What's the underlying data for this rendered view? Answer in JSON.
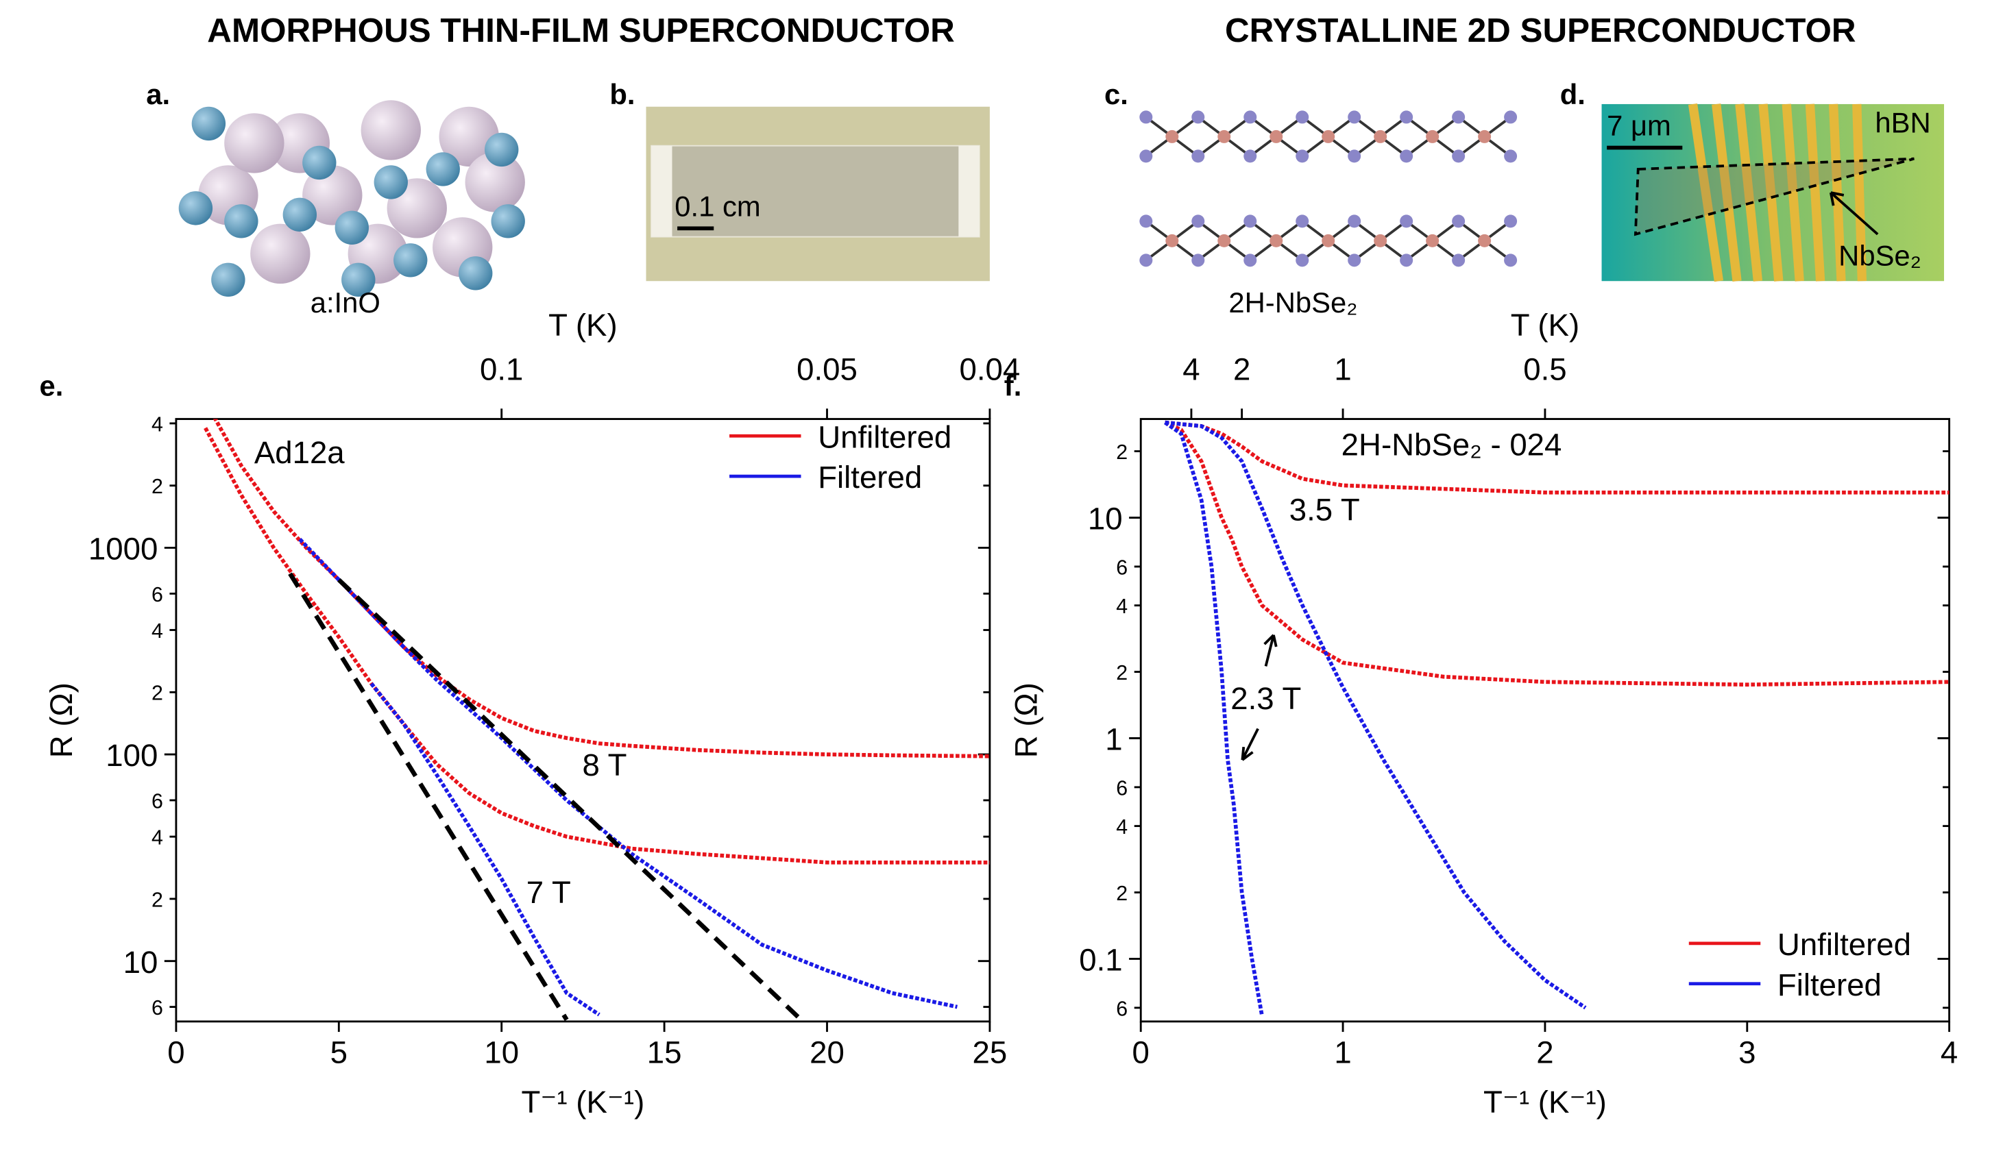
{
  "headings": [
    "AMORPHOUS THIN-FILM SUPERCONDUCTOR",
    "CRYSTALLINE 2D SUPERCONDUCTOR"
  ],
  "panels": {
    "a": {
      "letter": "a.",
      "caption": "a:InO"
    },
    "b": {
      "letter": "b.",
      "scale": "0.1 cm"
    },
    "c": {
      "letter": "c.",
      "caption": "2H-NbSe₂"
    },
    "d": {
      "letter": "d.",
      "scale": "7 μm",
      "labels": [
        "hBN",
        "NbSe₂"
      ]
    }
  },
  "chart_data": [
    {
      "type": "line",
      "panel_label": "e.",
      "xlabel": "T⁻¹ (K⁻¹)",
      "ylabel": "R (Ω)",
      "x2label": "T (K)",
      "yscale": "log",
      "legend": "upper right",
      "xlim": [
        0,
        25
      ],
      "ylim": [
        5.1,
        4200
      ],
      "xticks": [
        0,
        5,
        10,
        15,
        20,
        25
      ],
      "yticks": [
        {
          "value": 6,
          "label": "6"
        },
        10,
        {
          "value": 20,
          "label": "2"
        },
        {
          "value": 40,
          "label": "4"
        },
        {
          "value": 60,
          "label": "6"
        },
        100,
        {
          "value": 200,
          "label": "2"
        },
        {
          "value": 400,
          "label": "4"
        },
        {
          "value": 600,
          "label": "6"
        },
        1000,
        {
          "value": 2000,
          "label": "2"
        },
        {
          "value": 4000,
          "label": "4"
        }
      ],
      "x2ticks": [
        0.1,
        0.05,
        0.04
      ],
      "annotations": [
        "Ad12a",
        "8 T",
        "7 T"
      ],
      "series": [
        {
          "name": "Unfiltered",
          "color": "#e8141b",
          "curves": [
            {
              "x": [
                1,
                2,
                3,
                4,
                5,
                6,
                7,
                8,
                9,
                10,
                11,
                12,
                13,
                14,
                16,
                18,
                20,
                22,
                25
              ],
              "values": [
                4800,
                2500,
                1500,
                1000,
                700,
                480,
                330,
                240,
                185,
                150,
                130,
                120,
                113,
                110,
                105,
                102,
                100,
                99,
                98
              ]
            },
            {
              "x": [
                0.9,
                2,
                3,
                4,
                5,
                6,
                7,
                8,
                9,
                10,
                11,
                12,
                14,
                16,
                20,
                25
              ],
              "values": [
                3800,
                1800,
                1000,
                600,
                370,
                220,
                140,
                90,
                65,
                52,
                45,
                40,
                35,
                33,
                30,
                30
              ]
            }
          ]
        },
        {
          "name": "Filtered",
          "color": "#1a1ae6",
          "curves": [
            {
              "x": [
                3.8,
                5,
                6,
                7,
                8,
                10,
                12,
                14,
                16,
                18,
                20,
                22,
                24
              ],
              "values": [
                1100,
                700,
                480,
                330,
                230,
                120,
                60,
                33,
                20,
                12,
                9,
                7,
                6
              ]
            },
            {
              "x": [
                6,
                7,
                8,
                9,
                10,
                11,
                12,
                13
              ],
              "values": [
                220,
                140,
                80,
                45,
                25,
                13,
                7,
                5.5
              ]
            }
          ]
        }
      ],
      "fits": [
        {
          "x": [
            5,
            19.2
          ],
          "values": [
            700,
            5.2
          ]
        },
        {
          "x": [
            3.5,
            12
          ],
          "values": [
            750,
            5.2
          ]
        }
      ]
    },
    {
      "type": "line",
      "panel_label": "f.",
      "xlabel": "T⁻¹ (K⁻¹)",
      "ylabel": "R (Ω)",
      "x2label": "T (K)",
      "yscale": "log",
      "legend": "lower right",
      "xlim": [
        0,
        4
      ],
      "ylim": [
        0.052,
        28
      ],
      "xticks": [
        0,
        1,
        2,
        3,
        4
      ],
      "yticks": [
        {
          "value": 0.06,
          "label": "6"
        },
        0.1,
        {
          "value": 0.2,
          "label": "2"
        },
        {
          "value": 0.4,
          "label": "4"
        },
        {
          "value": 0.6,
          "label": "6"
        },
        1,
        {
          "value": 2,
          "label": "2"
        },
        {
          "value": 4,
          "label": "4"
        },
        {
          "value": 6,
          "label": "6"
        },
        10,
        {
          "value": 20,
          "label": "2"
        }
      ],
      "x2ticks": [
        4,
        2,
        1,
        0.5
      ],
      "annotations": [
        "2H-NbSe₂ - 024",
        "3.5 T",
        "2.3 T"
      ],
      "series": [
        {
          "name": "Unfiltered",
          "color": "#e8141b",
          "curves": [
            {
              "x": [
                0.12,
                0.3,
                0.4,
                0.5,
                0.6,
                0.8,
                1,
                1.5,
                2,
                3,
                4
              ],
              "values": [
                27,
                26,
                24,
                21,
                18,
                15,
                14,
                13.5,
                13,
                13,
                13
              ]
            },
            {
              "x": [
                0.12,
                0.2,
                0.3,
                0.4,
                0.45,
                0.5,
                0.6,
                0.8,
                1,
                1.5,
                2,
                3,
                4
              ],
              "values": [
                27,
                25,
                18,
                10,
                8,
                6,
                4,
                2.8,
                2.2,
                1.9,
                1.8,
                1.75,
                1.8
              ]
            }
          ]
        },
        {
          "name": "Filtered",
          "color": "#1a1ae6",
          "curves": [
            {
              "x": [
                0.12,
                0.3,
                0.4,
                0.5,
                0.6,
                0.7,
                0.8,
                0.9,
                1,
                1.2,
                1.4,
                1.6,
                1.8,
                2,
                2.2
              ],
              "values": [
                27,
                26,
                23,
                18,
                11,
                6.5,
                4,
                2.6,
                1.7,
                0.8,
                0.4,
                0.2,
                0.12,
                0.08,
                0.06
              ]
            },
            {
              "x": [
                0.12,
                0.2,
                0.3,
                0.35,
                0.4,
                0.43,
                0.46,
                0.5,
                0.55,
                0.6
              ],
              "values": [
                27,
                24,
                12,
                6,
                2,
                0.8,
                0.5,
                0.2,
                0.1,
                0.055
              ]
            }
          ]
        }
      ],
      "fits": []
    }
  ]
}
